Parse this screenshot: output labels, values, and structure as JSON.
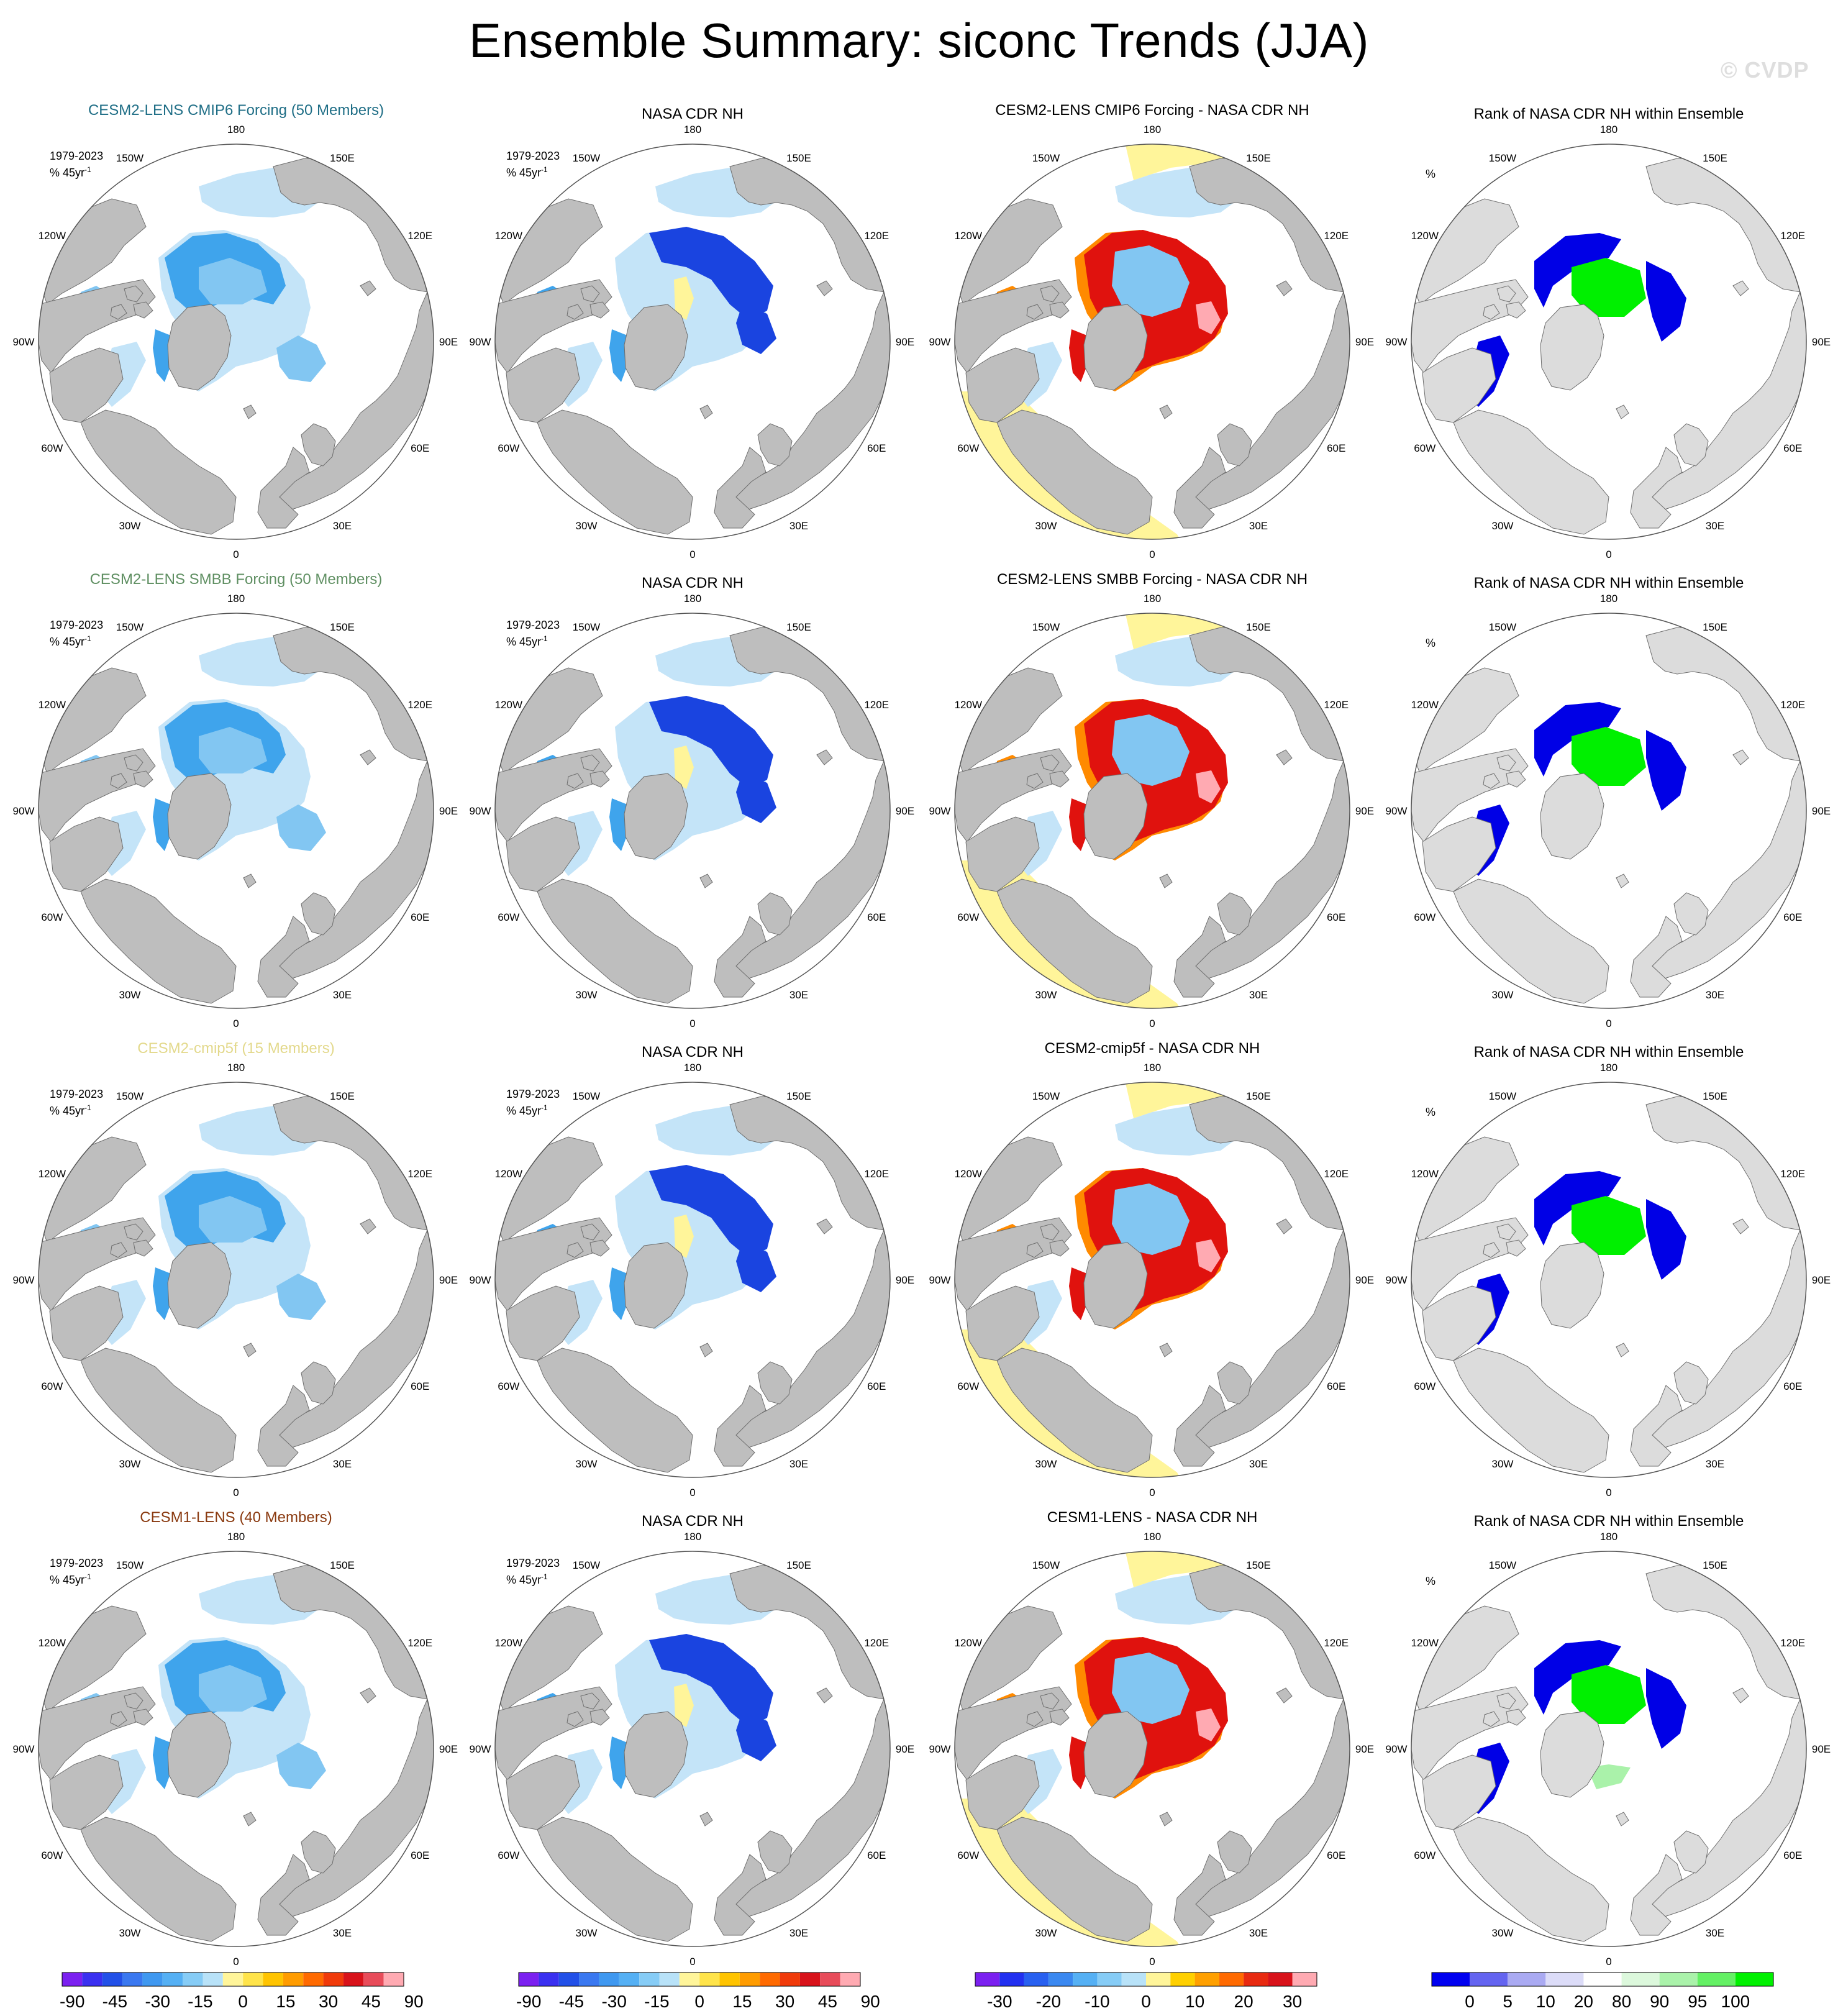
{
  "title": "Ensemble Summary: siconc Trends (JJA)",
  "watermark": "© CVDP",
  "corner_period": "1979-2023",
  "corner_unit": "% 45yr",
  "corner_unit_exp": "-1",
  "rank_unit": "%",
  "longitudes": [
    "180",
    "150E",
    "120E",
    "90E",
    "60E",
    "30E",
    "0",
    "30W",
    "60W",
    "90W",
    "120W",
    "150W"
  ],
  "colors": {
    "land": "#bebebe",
    "rank_land": "#dcdcdc",
    "ice_light": "#c4e4f8",
    "ice_mid": "#82c6f2",
    "ice_strong": "#3fa4ec",
    "ice_dark": "#1a44e0",
    "pos_yellow": "#fff59a",
    "diff_orange": "#ff8a00",
    "diff_red": "#e0120e",
    "diff_pink": "#ffaab2",
    "rank_blue": "#0000e6",
    "rank_green": "#00f000",
    "rank_lightgreen": "#aaf2aa",
    "rank_white": "#ffffff"
  },
  "rows": [
    {
      "ens_title": "CESM2-LENS CMIP6 Forcing (50 Members)",
      "ens_color": "#1f6e86",
      "obs_title": "NASA CDR NH",
      "diff_title": "CESM2-LENS CMIP6 Forcing - NASA CDR NH",
      "rank_title": "Rank of NASA CDR NH within Ensemble"
    },
    {
      "ens_title": "CESM2-LENS SMBB Forcing (50 Members)",
      "ens_color": "#5f8f62",
      "obs_title": "NASA CDR NH",
      "diff_title": "CESM2-LENS SMBB Forcing - NASA CDR NH",
      "rank_title": "Rank of NASA CDR NH within Ensemble"
    },
    {
      "ens_title": "CESM2-cmip5f (15 Members)",
      "ens_color": "#e3d98c",
      "obs_title": "NASA CDR NH",
      "diff_title": "CESM2-cmip5f - NASA CDR NH",
      "rank_title": "Rank of NASA CDR NH within Ensemble"
    },
    {
      "ens_title": "CESM1-LENS (40 Members)",
      "ens_color": "#8a3a10",
      "obs_title": "NASA CDR NH",
      "diff_title": "CESM1-LENS - NASA CDR NH",
      "rank_title": "Rank of NASA CDR NH within Ensemble"
    }
  ],
  "colorbars": [
    {
      "colors": [
        "#7b20f0",
        "#3a30f0",
        "#2250e8",
        "#3a78f0",
        "#3f98f0",
        "#55b0f4",
        "#86ccf6",
        "#b8e2f8",
        "#fff59a",
        "#ffe44a",
        "#ffc400",
        "#ff9c00",
        "#ff6a00",
        "#f03a0a",
        "#d8121a",
        "#e84c5a",
        "#ffaab2"
      ],
      "labels": [
        "-90",
        "-45",
        "-30",
        "-15",
        "0",
        "15",
        "30",
        "45",
        "90"
      ]
    },
    {
      "colors": [
        "#7b20f0",
        "#3a30f0",
        "#2250e8",
        "#3a78f0",
        "#3f98f0",
        "#55b0f4",
        "#86ccf6",
        "#b8e2f8",
        "#fff59a",
        "#ffe44a",
        "#ffc400",
        "#ff9c00",
        "#ff6a00",
        "#f03a0a",
        "#d8121a",
        "#e84c5a",
        "#ffaab2"
      ],
      "labels": [
        "-90",
        "-45",
        "-30",
        "-15",
        "0",
        "15",
        "30",
        "45",
        "90"
      ]
    },
    {
      "colors": [
        "#7b20f0",
        "#2230f0",
        "#2860f0",
        "#3a88f0",
        "#55b0f4",
        "#86ccf6",
        "#b8e2f8",
        "#fff59a",
        "#ffd000",
        "#ffa000",
        "#ff6a00",
        "#e82a10",
        "#d8121a",
        "#ffaab2"
      ],
      "labels": [
        "-30",
        "-20",
        "-10",
        "0",
        "10",
        "20",
        "30"
      ]
    },
    {
      "colors": [
        "#0000f0",
        "#6464f0",
        "#aaaaf2",
        "#dcdcf8",
        "#ffffff",
        "#dcf8dc",
        "#aaf2aa",
        "#64f064",
        "#00f000"
      ],
      "labels": [
        "0",
        "5",
        "10",
        "20",
        "80",
        "90",
        "95",
        "100"
      ]
    }
  ]
}
